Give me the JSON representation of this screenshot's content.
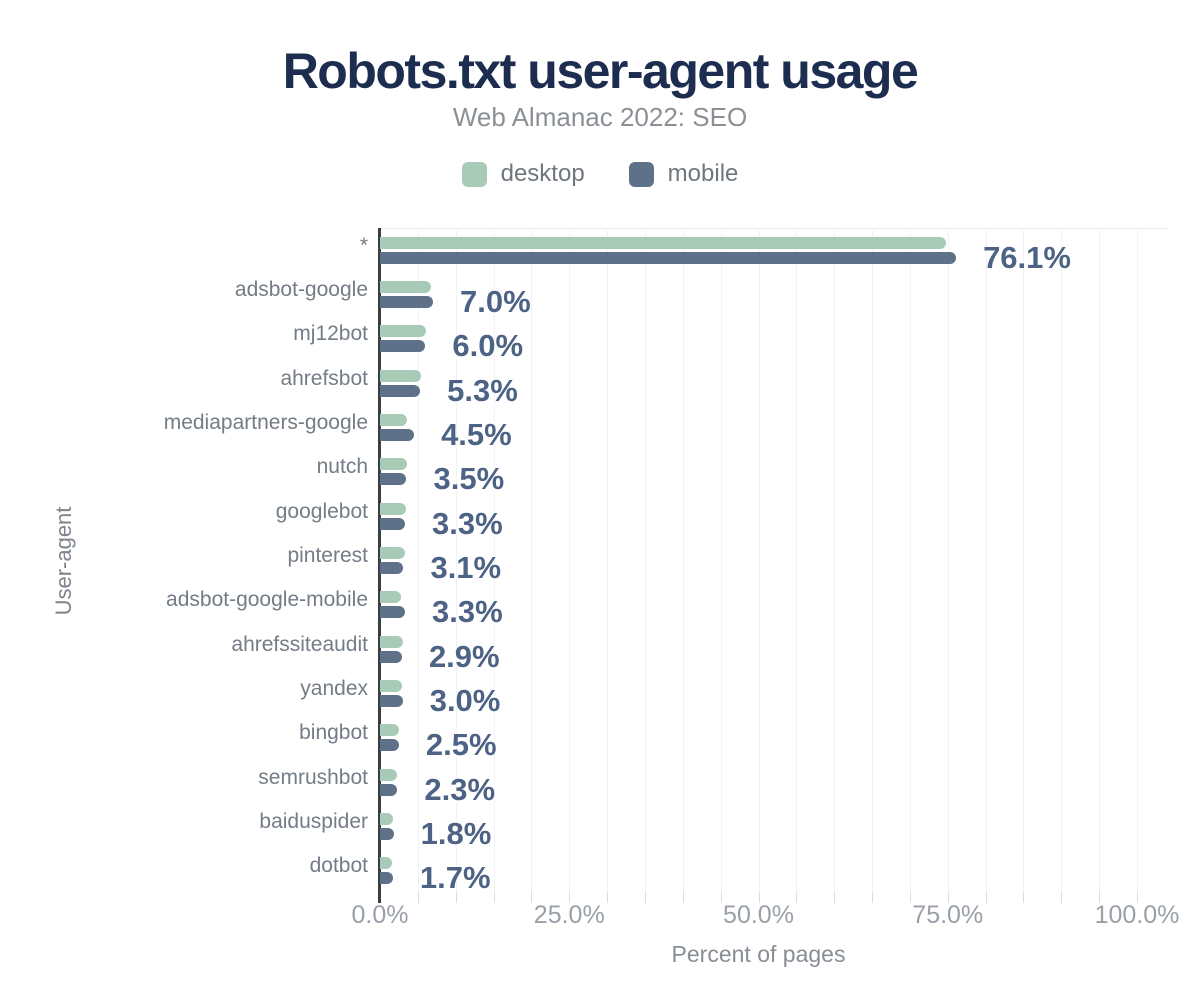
{
  "header": {
    "title": "Robots.txt user-agent usage",
    "subtitle": "Web Almanac 2022: SEO"
  },
  "legend": {
    "items": [
      {
        "label": "desktop",
        "color": "#a8cbb8"
      },
      {
        "label": "mobile",
        "color": "#5f7188"
      }
    ]
  },
  "axes": {
    "x_title": "Percent of pages",
    "y_title": "User-agent",
    "x_ticks": [
      {
        "label": "0.0%",
        "value": 0
      },
      {
        "label": "25.0%",
        "value": 25
      },
      {
        "label": "50.0%",
        "value": 50
      },
      {
        "label": "75.0%",
        "value": 75
      },
      {
        "label": "100.0%",
        "value": 100
      }
    ],
    "grid_step": 5,
    "x_max": 100
  },
  "chart_data": {
    "type": "bar",
    "orientation": "horizontal",
    "title": "Robots.txt user-agent usage",
    "subtitle": "Web Almanac 2022: SEO",
    "xlabel": "Percent of pages",
    "ylabel": "User-agent",
    "xlim": [
      0,
      100
    ],
    "grid": true,
    "legend_position": "top",
    "categories": [
      "*",
      "adsbot-google",
      "mj12bot",
      "ahrefsbot",
      "mediapartners-google",
      "nutch",
      "googlebot",
      "pinterest",
      "adsbot-google-mobile",
      "ahrefssiteaudit",
      "yandex",
      "bingbot",
      "semrushbot",
      "baiduspider",
      "dotbot"
    ],
    "series": [
      {
        "name": "desktop",
        "color": "#a8cbb8",
        "values": [
          74.8,
          6.7,
          6.1,
          5.4,
          3.6,
          3.6,
          3.4,
          3.3,
          2.8,
          3.0,
          2.9,
          2.5,
          2.3,
          1.7,
          1.6
        ]
      },
      {
        "name": "mobile",
        "color": "#5f7188",
        "values": [
          76.1,
          7.0,
          6.0,
          5.3,
          4.5,
          3.5,
          3.3,
          3.1,
          3.3,
          2.9,
          3.0,
          2.5,
          2.3,
          1.8,
          1.7
        ]
      }
    ],
    "value_labels": [
      "76.1%",
      "7.0%",
      "6.0%",
      "5.3%",
      "4.5%",
      "3.5%",
      "3.3%",
      "3.1%",
      "3.3%",
      "2.9%",
      "3.0%",
      "2.5%",
      "2.3%",
      "1.8%",
      "1.7%"
    ]
  },
  "colors": {
    "title": "#1c2d50",
    "subtitle": "#8b9095",
    "category_label": "#747c86",
    "value_label": "#4d6385",
    "tick_label": "#9aa0a8",
    "axis_title": "#878e96",
    "axis_line": "#3a3d42",
    "gridline": "#f2f3f6",
    "plot_border": "#e9ebee",
    "legend_text": "#6f767e"
  }
}
